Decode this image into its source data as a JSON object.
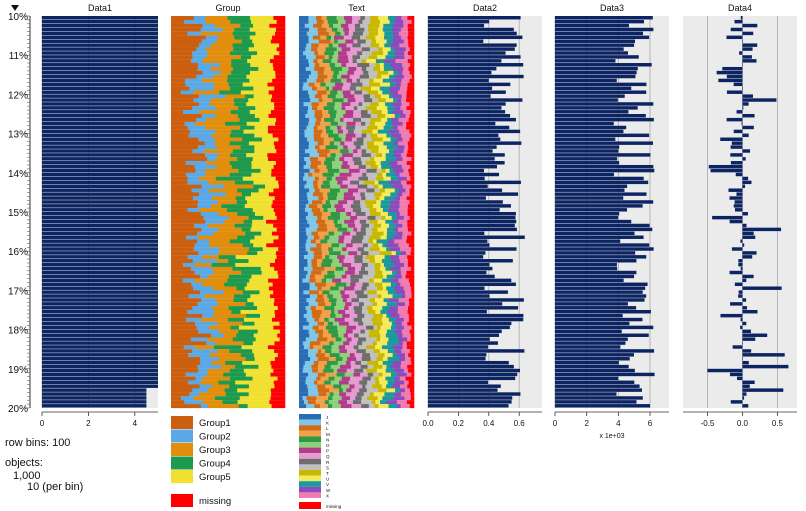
{
  "chart_data": {
    "type": "tableplot",
    "sort_column": "Data1",
    "sort_direction": "descending",
    "row_labels": [
      "10%",
      "11%",
      "12%",
      "13%",
      "14%",
      "15%",
      "16%",
      "17%",
      "18%",
      "19%",
      "20%"
    ],
    "row_bins": 100,
    "objects_total": "1,000",
    "objects_per_bin": "10 (per bin)",
    "columns": [
      {
        "name": "Data1",
        "kind": "numeric",
        "xlim": [
          0,
          5
        ],
        "tick_labels": [
          "0",
          "2",
          "4"
        ],
        "ticks": [
          0,
          2,
          4
        ],
        "values_at_row_percent": [
          [
            10,
            5.0
          ],
          [
            19,
            5.0
          ],
          [
            19.5,
            4.5
          ],
          [
            20,
            4.5
          ]
        ]
      },
      {
        "name": "Group",
        "kind": "categorical",
        "categories": [
          "Group1",
          "Group2",
          "Group3",
          "Group4",
          "Group5",
          "missing"
        ],
        "colors": [
          "#cc5f0e",
          "#5aa9e6",
          "#e08e0b",
          "#1e9a4f",
          "#f0e130",
          "#ff0000"
        ],
        "approx_proportions": [
          0.2,
          0.15,
          0.2,
          0.15,
          0.2,
          0.1
        ]
      },
      {
        "name": "Text",
        "kind": "categorical",
        "categories": [
          "J",
          "K",
          "L",
          "M",
          "N",
          "O",
          "P",
          "Q",
          "R",
          "S",
          "T",
          "U",
          "V",
          "W",
          "X",
          "missing"
        ],
        "colors": [
          "#2a6db5",
          "#7fc7e8",
          "#d06b17",
          "#f2a04a",
          "#2e9a45",
          "#8fd07a",
          "#b03c8c",
          "#e59ad0",
          "#6d6d6d",
          "#c0c0c0",
          "#c8b900",
          "#f5ea5a",
          "#1b9a9e",
          "#8a4bbc",
          "#f07bb0",
          "#ff0000"
        ]
      },
      {
        "name": "Data2",
        "kind": "numeric",
        "xlim": [
          0,
          0.75
        ],
        "tick_labels": [
          "0.0",
          "0.2",
          "0.4",
          "0.6"
        ],
        "ticks": [
          0,
          0.2,
          0.4,
          0.6
        ],
        "mean": 0.5
      },
      {
        "name": "Data3",
        "kind": "numeric",
        "xlim": [
          0,
          7.2
        ],
        "tick_labels": [
          "0",
          "2",
          "4",
          "6"
        ],
        "ticks": [
          0,
          2,
          4,
          6
        ],
        "scale_note": "x 1e+03",
        "mean": 5.0
      },
      {
        "name": "Data4",
        "kind": "numeric",
        "xlim": [
          -0.85,
          0.78
        ],
        "tick_labels": [
          "-0.5",
          "0.0",
          "0.5"
        ],
        "ticks": [
          -0.5,
          0,
          0.5
        ],
        "mean": 0.0
      }
    ]
  },
  "footer": {
    "row_bins_label": "row bins: 100",
    "objects_label": "objects:"
  },
  "colors": {
    "bar": "#0c2461",
    "panel_bg": "#ebebeb",
    "grid": "#a8a8a8",
    "axis": "#333333"
  }
}
